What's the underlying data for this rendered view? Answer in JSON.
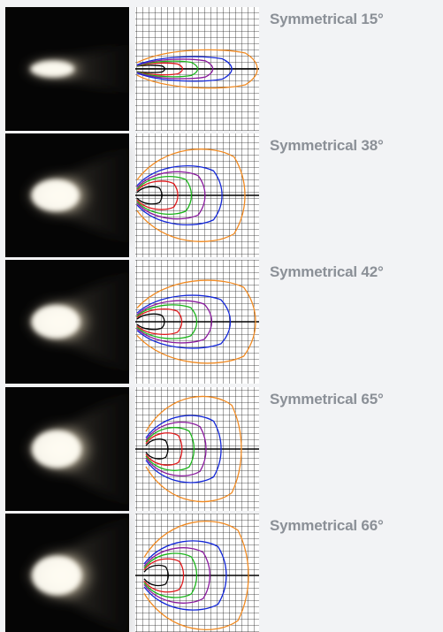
{
  "rows": [
    {
      "label": "Symmetrical 15°"
    },
    {
      "label": "Symmetrical 38°"
    },
    {
      "label": "Symmetrical 42°"
    },
    {
      "label": "Symmetrical 65°"
    },
    {
      "label": "Symmetrical 66°"
    }
  ]
}
